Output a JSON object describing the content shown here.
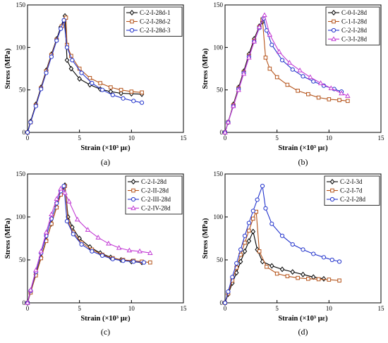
{
  "chart_data": [
    {
      "type": "line",
      "panel": "(a)",
      "xlabel": "Strain (×10³ με)",
      "ylabel": "Stress (MPa)",
      "xlim": [
        0,
        15
      ],
      "ylim": [
        0,
        150
      ],
      "xticks": [
        0,
        5,
        10,
        15
      ],
      "yticks": [
        0,
        50,
        100,
        150
      ],
      "legend": "top-right",
      "series": [
        {
          "name": "C-2-I-28d-1",
          "color": "#000000",
          "marker": "diamond",
          "x": [
            0,
            0.3,
            0.8,
            1.3,
            1.8,
            2.3,
            2.8,
            3.2,
            3.6,
            3.8,
            4.2,
            5.0,
            6.0,
            7.0,
            8.0,
            9.0,
            10.0,
            11.0
          ],
          "y": [
            0,
            13,
            33,
            53,
            73,
            92,
            110,
            124,
            137,
            85,
            75,
            63,
            56,
            51,
            48,
            46,
            45.5,
            45
          ]
        },
        {
          "name": "C-2-I-28d-2",
          "color": "#b5541b",
          "marker": "square",
          "x": [
            0,
            0.3,
            0.8,
            1.3,
            1.8,
            2.3,
            2.8,
            3.3,
            3.7,
            3.8,
            4.2,
            5.0,
            6.0,
            7.0,
            8.0,
            9.0,
            10.0,
            11.0
          ],
          "y": [
            0,
            12,
            32,
            52,
            72,
            91,
            109,
            125,
            135,
            103,
            90,
            75,
            64,
            58,
            53,
            50,
            48,
            47
          ]
        },
        {
          "name": "C-2-I-28d-3",
          "color": "#2233cc",
          "marker": "circle",
          "x": [
            0,
            0.3,
            0.8,
            1.3,
            1.8,
            2.3,
            2.8,
            3.2,
            3.5,
            3.8,
            4.3,
            5.2,
            6.2,
            7.2,
            8.2,
            9.2,
            10.2,
            11.0
          ],
          "y": [
            0,
            12,
            31,
            51,
            70,
            89,
            108,
            122,
            132,
            100,
            85,
            70,
            58,
            50,
            44,
            40,
            37,
            35
          ]
        }
      ]
    },
    {
      "type": "line",
      "panel": "(b)",
      "xlabel": "Strain (×10³ με)",
      "ylabel": "Stress (MPa)",
      "xlim": [
        0,
        15
      ],
      "ylim": [
        0,
        150
      ],
      "xticks": [
        0,
        5,
        10,
        15
      ],
      "yticks": [
        0,
        50,
        100,
        150
      ],
      "legend": "top-right",
      "series": [
        {
          "name": "C-0-I-28d",
          "color": "#000000",
          "marker": "diamond",
          "x": [
            0,
            0.3,
            0.8,
            1.3,
            1.8,
            2.3,
            2.8,
            3.3,
            3.6
          ],
          "y": [
            0,
            12,
            33,
            53,
            72,
            92,
            110,
            125,
            130
          ]
        },
        {
          "name": "C-1-I-28d",
          "color": "#b5541b",
          "marker": "square",
          "x": [
            0,
            0.3,
            0.8,
            1.3,
            1.8,
            2.3,
            2.8,
            3.3,
            3.6,
            3.9,
            4.3,
            5.0,
            6.0,
            7.0,
            8.0,
            9.0,
            10.0,
            11.0,
            11.8
          ],
          "y": [
            0,
            12,
            32,
            52,
            71,
            90,
            108,
            124,
            133,
            88,
            75,
            65,
            56,
            49,
            45,
            41,
            39,
            38,
            37
          ]
        },
        {
          "name": "C-2-I-28d",
          "color": "#2233cc",
          "marker": "circle",
          "x": [
            0,
            0.3,
            0.8,
            1.3,
            1.8,
            2.3,
            2.8,
            3.3,
            3.7,
            4.0,
            4.5,
            5.5,
            6.5,
            7.5,
            8.5,
            9.5,
            10.5,
            11.2
          ],
          "y": [
            0,
            12,
            31,
            51,
            70,
            89,
            107,
            123,
            134,
            120,
            103,
            85,
            74,
            66,
            60,
            55,
            51,
            48
          ]
        },
        {
          "name": "C-3-I-28d",
          "color": "#c23bd4",
          "marker": "triangle",
          "x": [
            0,
            0.3,
            0.8,
            1.3,
            1.8,
            2.3,
            2.8,
            3.3,
            3.8,
            4.3,
            5.2,
            6.2,
            7.2,
            8.2,
            9.2,
            10.2,
            11.2,
            11.8
          ],
          "y": [
            0,
            12,
            31,
            50,
            69,
            88,
            107,
            124,
            138,
            115,
            95,
            82,
            73,
            65,
            58,
            52,
            46,
            43
          ]
        }
      ]
    },
    {
      "type": "line",
      "panel": "(c)",
      "xlabel": "Strain (×10³ με)",
      "ylabel": "Stress (MPa)",
      "xlim": [
        0,
        15
      ],
      "ylim": [
        0,
        150
      ],
      "xticks": [
        0,
        5,
        10,
        15
      ],
      "yticks": [
        0,
        50,
        100,
        150
      ],
      "legend": "top-right",
      "series": [
        {
          "name": "C-2-I-28d",
          "color": "#000000",
          "marker": "diamond",
          "x": [
            0,
            0.3,
            0.8,
            1.3,
            1.8,
            2.3,
            2.8,
            3.2,
            3.6,
            3.9,
            4.3,
            5.0,
            6.0,
            7.0,
            8.0,
            9.0,
            10.0,
            11.0
          ],
          "y": [
            0,
            13,
            33,
            53,
            73,
            92,
            112,
            127,
            137,
            100,
            88,
            75,
            65,
            58,
            53,
            50,
            48,
            47
          ]
        },
        {
          "name": "C-2-II-28d",
          "color": "#b5541b",
          "marker": "square",
          "x": [
            0,
            0.3,
            0.8,
            1.3,
            1.8,
            2.3,
            2.8,
            3.2,
            3.6,
            3.9,
            4.4,
            5.2,
            6.2,
            7.2,
            8.2,
            9.2,
            10.2,
            11.0,
            11.8
          ],
          "y": [
            0,
            12,
            32,
            52,
            72,
            92,
            111,
            126,
            136,
            95,
            82,
            70,
            62,
            56,
            52,
            50,
            49,
            48,
            47
          ]
        },
        {
          "name": "C-2-III-28d",
          "color": "#2233cc",
          "marker": "circle",
          "x": [
            0,
            0.3,
            0.8,
            1.3,
            1.8,
            2.3,
            2.8,
            3.2,
            3.5,
            3.8,
            4.4,
            5.2,
            6.2,
            7.2,
            8.2,
            9.2,
            10.2,
            11.2
          ],
          "y": [
            0,
            14,
            36,
            58,
            78,
            98,
            116,
            130,
            136,
            95,
            80,
            68,
            60,
            55,
            51,
            49,
            48,
            47
          ]
        },
        {
          "name": "C-2-IV-28d",
          "color": "#c23bd4",
          "marker": "triangle",
          "x": [
            0,
            0.3,
            0.8,
            1.3,
            1.8,
            2.3,
            2.8,
            3.2,
            3.6,
            4.0,
            4.8,
            5.8,
            6.8,
            7.8,
            8.8,
            9.8,
            10.8,
            11.8
          ],
          "y": [
            0,
            15,
            38,
            60,
            82,
            103,
            121,
            133,
            128,
            118,
            97,
            85,
            76,
            69,
            64,
            61,
            60,
            58
          ]
        }
      ]
    },
    {
      "type": "line",
      "panel": "(d)",
      "xlabel": "Strain (×10³ με)",
      "ylabel": "Stress (MPa)",
      "xlim": [
        0,
        15
      ],
      "ylim": [
        0,
        150
      ],
      "xticks": [
        0,
        5,
        10,
        15
      ],
      "yticks": [
        0,
        50,
        100,
        150
      ],
      "legend": "top-right",
      "series": [
        {
          "name": "C-2-I-3d",
          "color": "#000000",
          "marker": "diamond",
          "x": [
            0,
            0.3,
            0.7,
            1.1,
            1.5,
            1.9,
            2.3,
            2.7,
            3.1,
            3.6,
            4.5,
            5.5,
            6.5,
            7.5,
            8.5,
            9.5
          ],
          "y": [
            0,
            10,
            23,
            35,
            48,
            60,
            72,
            83,
            62,
            48,
            43,
            39,
            36,
            33,
            30,
            28
          ]
        },
        {
          "name": "C-2-I-7d",
          "color": "#b5541b",
          "marker": "square",
          "x": [
            0,
            0.3,
            0.7,
            1.1,
            1.5,
            1.9,
            2.3,
            2.7,
            3.0,
            3.3,
            4.0,
            5.0,
            6.0,
            7.0,
            8.0,
            9.0,
            10.0,
            11.0
          ],
          "y": [
            0,
            11,
            26,
            41,
            56,
            70,
            84,
            98,
            106,
            60,
            42,
            34,
            31,
            29,
            28,
            27.5,
            27,
            26
          ]
        },
        {
          "name": "C-2-I-28d",
          "color": "#2233cc",
          "marker": "circle",
          "x": [
            0,
            0.3,
            0.7,
            1.1,
            1.5,
            1.9,
            2.3,
            2.7,
            3.1,
            3.6,
            3.9,
            4.5,
            5.5,
            6.5,
            7.5,
            8.5,
            9.5,
            10.3,
            11.0
          ],
          "y": [
            0,
            13,
            30,
            46,
            62,
            78,
            93,
            107,
            120,
            136,
            110,
            92,
            78,
            68,
            62,
            57,
            53,
            50,
            48
          ]
        }
      ]
    }
  ]
}
